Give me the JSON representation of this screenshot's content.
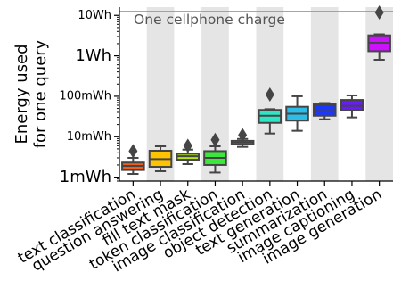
{
  "chart_data": {
    "type": "box",
    "title": "",
    "xlabel": "",
    "ylabel": "Energy used\nfor one query",
    "y_scale": "log",
    "y_unit": "Wh",
    "ylim": [
      0.0008,
      16
    ],
    "y_ticks": [
      {
        "value": 0.001,
        "label": "1mWh",
        "major": true
      },
      {
        "value": 0.01,
        "label": "10mWh",
        "major": false
      },
      {
        "value": 0.1,
        "label": "100mWh",
        "major": false
      },
      {
        "value": 1,
        "label": "1Wh",
        "major": true
      },
      {
        "value": 10,
        "label": "10Wh",
        "major": false
      }
    ],
    "grid": false,
    "alternate_column_shading": true,
    "reference_line": {
      "value": 12.5,
      "label": "One cellphone charge",
      "color": "#999999"
    },
    "categories": [
      "text classification",
      "question answering",
      "fill text mask",
      "token classification",
      "image classification",
      "object detection",
      "text generation",
      "summarization",
      "image captioning",
      "image generation"
    ],
    "boxes": [
      {
        "category": "text classification",
        "whislo": 0.0012,
        "q1": 0.0015,
        "median": 0.0019,
        "q3": 0.0023,
        "whishi": 0.003,
        "fliers": [
          0.0044
        ],
        "color": "#f25c1d"
      },
      {
        "category": "question answering",
        "whislo": 0.0014,
        "q1": 0.0018,
        "median": 0.0028,
        "q3": 0.0045,
        "whishi": 0.0058,
        "fliers": [],
        "color": "#ffc300"
      },
      {
        "category": "fill text mask",
        "whislo": 0.0021,
        "q1": 0.0027,
        "median": 0.0033,
        "q3": 0.0038,
        "whishi": 0.0048,
        "fliers": [
          0.006
        ],
        "color": "#b4e51b"
      },
      {
        "category": "token classification",
        "whislo": 0.0013,
        "q1": 0.002,
        "median": 0.003,
        "q3": 0.0044,
        "whishi": 0.0058,
        "fliers": [
          0.0084
        ],
        "color": "#3ce63c"
      },
      {
        "category": "image classification",
        "whislo": 0.0056,
        "q1": 0.0065,
        "median": 0.0072,
        "q3": 0.0079,
        "whishi": 0.0088,
        "fliers": [
          0.011
        ],
        "color": "#2fe689"
      },
      {
        "category": "object detection",
        "whislo": 0.012,
        "q1": 0.022,
        "median": 0.033,
        "q3": 0.046,
        "whishi": 0.048,
        "fliers": [
          0.11
        ],
        "color": "#2ee6c6"
      },
      {
        "category": "text generation",
        "whislo": 0.014,
        "q1": 0.025,
        "median": 0.037,
        "q3": 0.055,
        "whishi": 0.1,
        "fliers": [],
        "color": "#2cbde9"
      },
      {
        "category": "summarization",
        "whislo": 0.027,
        "q1": 0.033,
        "median": 0.043,
        "q3": 0.063,
        "whishi": 0.068,
        "fliers": [],
        "color": "#1a37ff"
      },
      {
        "category": "image captioning",
        "whislo": 0.03,
        "q1": 0.045,
        "median": 0.058,
        "q3": 0.081,
        "whishi": 0.105,
        "fliers": [],
        "color": "#6a1aff"
      },
      {
        "category": "image generation",
        "whislo": 0.8,
        "q1": 1.3,
        "median": 2.1,
        "q3": 3.2,
        "whishi": 3.4,
        "fliers": [
          11.8
        ],
        "color": "#cc11ff"
      }
    ]
  }
}
